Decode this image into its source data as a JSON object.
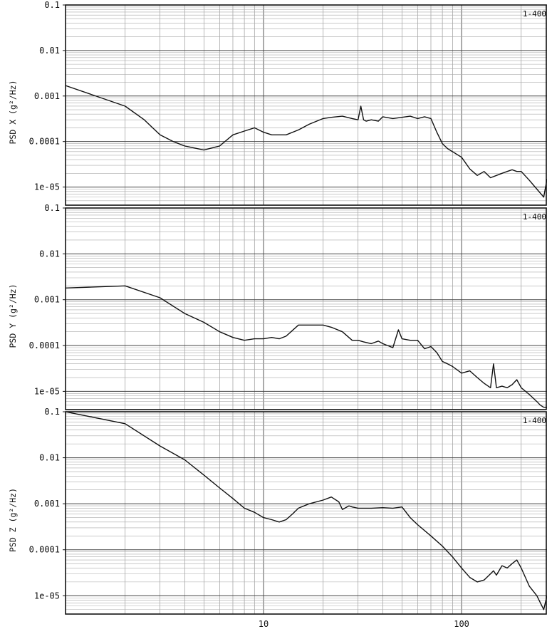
{
  "chart_data": [
    {
      "type": "line",
      "ylabel": "PSD X (g²/Hz)",
      "tag": "1-400",
      "xscale": "log",
      "yscale": "log",
      "xlim": [
        1,
        270
      ],
      "ylim": [
        4e-06,
        0.1
      ],
      "grid": true,
      "yticks": [
        {
          "value": 0.1,
          "label": "0.1"
        },
        {
          "value": 0.01,
          "label": "0.01"
        },
        {
          "value": 0.001,
          "label": "0.001"
        },
        {
          "value": 0.0001,
          "label": "0.0001"
        },
        {
          "value": 1e-05,
          "label": "1e-05"
        }
      ],
      "x": [
        1,
        2,
        2.5,
        3,
        3.5,
        4,
        5,
        6,
        7,
        8,
        9,
        10,
        11,
        12,
        13,
        15,
        17,
        20,
        22,
        25,
        28,
        30,
        31,
        32,
        33,
        35,
        38,
        40,
        45,
        50,
        55,
        60,
        65,
        70,
        75,
        80,
        85,
        90,
        100,
        110,
        120,
        130,
        140,
        150,
        160,
        170,
        180,
        190,
        200,
        220,
        240,
        260,
        270
      ],
      "y": [
        0.0017,
        0.0006,
        0.0003,
        0.00014,
        0.0001,
        8e-05,
        6.5e-05,
        8e-05,
        0.00014,
        0.00017,
        0.0002,
        0.00016,
        0.00014,
        0.00014,
        0.00014,
        0.00018,
        0.00024,
        0.00032,
        0.00034,
        0.00036,
        0.00032,
        0.0003,
        0.0006,
        0.0003,
        0.00028,
        0.0003,
        0.00028,
        0.00035,
        0.00032,
        0.00034,
        0.00036,
        0.00032,
        0.00035,
        0.00032,
        0.00016,
        9e-05,
        7e-05,
        6e-05,
        4.5e-05,
        2.5e-05,
        1.8e-05,
        2.2e-05,
        1.6e-05,
        1.8e-05,
        2e-05,
        2.2e-05,
        2.4e-05,
        2.2e-05,
        2.2e-05,
        1.4e-05,
        9e-06,
        6e-06,
        1.5e-05
      ]
    },
    {
      "type": "line",
      "ylabel": "PSD Y (g²/Hz)",
      "tag": "1-400",
      "xscale": "log",
      "yscale": "log",
      "xlim": [
        1,
        270
      ],
      "ylim": [
        4e-06,
        0.1
      ],
      "grid": true,
      "yticks": [
        {
          "value": 0.1,
          "label": "0.1"
        },
        {
          "value": 0.01,
          "label": "0.01"
        },
        {
          "value": 0.001,
          "label": "0.001"
        },
        {
          "value": 0.0001,
          "label": "0.0001"
        },
        {
          "value": 1e-05,
          "label": "1e-05"
        }
      ],
      "x": [
        1,
        2,
        3,
        4,
        5,
        6,
        7,
        8,
        9,
        10,
        11,
        12,
        13,
        15,
        17,
        20,
        22,
        25,
        28,
        30,
        32,
        35,
        38,
        40,
        45,
        48,
        50,
        55,
        60,
        65,
        70,
        75,
        80,
        85,
        90,
        100,
        110,
        120,
        130,
        140,
        145,
        150,
        160,
        170,
        180,
        190,
        200,
        220,
        240,
        250,
        260,
        270
      ],
      "y": [
        0.0018,
        0.002,
        0.0011,
        0.0005,
        0.00032,
        0.0002,
        0.00015,
        0.00013,
        0.00014,
        0.00014,
        0.00015,
        0.00014,
        0.00016,
        0.00028,
        0.00028,
        0.00028,
        0.00025,
        0.0002,
        0.00013,
        0.00013,
        0.00012,
        0.00011,
        0.000125,
        0.00011,
        9e-05,
        0.00022,
        0.00014,
        0.00013,
        0.00013,
        8.5e-05,
        9.5e-05,
        7e-05,
        4.5e-05,
        4e-05,
        3.5e-05,
        2.5e-05,
        2.8e-05,
        2e-05,
        1.5e-05,
        1.2e-05,
        4e-05,
        1.2e-05,
        1.3e-05,
        1.2e-05,
        1.4e-05,
        1.8e-05,
        1.2e-05,
        8.5e-06,
        6e-06,
        5e-06,
        4.5e-06,
        4.5e-06
      ]
    },
    {
      "type": "line",
      "ylabel": "PSD Z (g²/Hz)",
      "tag": "1-400",
      "xscale": "log",
      "yscale": "log",
      "xlim": [
        1,
        270
      ],
      "ylim": [
        4e-06,
        0.1
      ],
      "grid": true,
      "yticks": [
        {
          "value": 0.1,
          "label": "0.1"
        },
        {
          "value": 0.01,
          "label": "0.01"
        },
        {
          "value": 0.001,
          "label": "0.001"
        },
        {
          "value": 0.0001,
          "label": "0.0001"
        },
        {
          "value": 1e-05,
          "label": "1e-05"
        }
      ],
      "xticks": [
        {
          "value": 10,
          "label": "10"
        },
        {
          "value": 100,
          "label": "100"
        }
      ],
      "x": [
        1,
        2,
        3,
        4,
        5,
        6,
        7,
        8,
        9,
        10,
        11,
        12,
        13,
        14,
        15,
        17,
        20,
        22,
        24,
        25,
        27,
        28,
        30,
        35,
        40,
        45,
        50,
        55,
        60,
        70,
        80,
        90,
        100,
        110,
        120,
        130,
        140,
        145,
        150,
        160,
        170,
        180,
        190,
        200,
        210,
        220,
        240,
        250,
        260,
        270
      ],
      "y": [
        0.1,
        0.055,
        0.018,
        0.009,
        0.0042,
        0.0022,
        0.0013,
        0.0008,
        0.00065,
        0.0005,
        0.00045,
        0.0004,
        0.00045,
        0.0006,
        0.0008,
        0.001,
        0.0012,
        0.0014,
        0.0011,
        0.00075,
        0.0009,
        0.00085,
        0.0008,
        0.0008,
        0.00082,
        0.0008,
        0.00085,
        0.0005,
        0.00035,
        0.0002,
        0.00012,
        7e-05,
        4e-05,
        2.5e-05,
        2e-05,
        2.2e-05,
        3e-05,
        3.5e-05,
        2.8e-05,
        4.5e-05,
        4e-05,
        5e-05,
        6e-05,
        4e-05,
        2.5e-05,
        1.6e-05,
        1e-05,
        7e-06,
        5e-06,
        1e-05
      ]
    }
  ]
}
